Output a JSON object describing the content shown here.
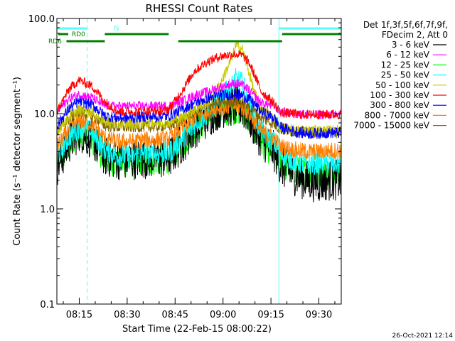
{
  "chart_data": {
    "type": "line",
    "title": "RHESSI Count Rates",
    "xlabel": "Start Time (22-Feb-15 08:00:22)",
    "ylabel": "Count Rate (s⁻¹ detector segment⁻¹)",
    "y_scale": "log",
    "ylim": [
      0.1,
      100.0
    ],
    "xlim_minutes": [
      8.0,
      97.0
    ],
    "y_ticks": [
      {
        "value": 0.1,
        "label": "0.1"
      },
      {
        "value": 1.0,
        "label": "1.0"
      },
      {
        "value": 10.0,
        "label": "10.0"
      },
      {
        "value": 100.0,
        "label": "100.0"
      }
    ],
    "x_ticks": [
      {
        "value": 15,
        "label": "08:15"
      },
      {
        "value": 30,
        "label": "08:30"
      },
      {
        "value": 45,
        "label": "08:45"
      },
      {
        "value": 60,
        "label": "09:00"
      },
      {
        "value": 75,
        "label": "09:15"
      },
      {
        "value": 90,
        "label": "09:30"
      }
    ],
    "legend_header": [
      "Det 1f,3f,5f,6f,7f,9f,",
      "FDecim 2, Att 0"
    ],
    "legend_position": "right",
    "grid": false,
    "attenuator_label": "N",
    "rd0_label": "RD0",
    "rd6_label": "RD6",
    "night_intervals": [
      [
        8.0,
        17.5
      ],
      [
        77.5,
        97.0
      ]
    ],
    "night_color": "#55ffff",
    "rd0_intervals": [
      [
        23.0,
        43.0
      ],
      [
        78.5,
        97.0
      ]
    ],
    "rd6_intervals": [
      [
        11.0,
        23.0
      ],
      [
        46.0,
        78.5
      ]
    ],
    "rd_color": "#008000",
    "x": [
      8,
      12,
      15,
      19,
      23,
      27,
      31,
      35,
      39,
      43,
      47,
      51,
      55,
      59,
      63,
      64,
      66,
      68,
      70,
      72,
      76,
      78,
      82,
      86,
      90,
      93,
      97
    ],
    "series": [
      {
        "name": "3 - 6 keV",
        "color": "#000000",
        "values": [
          2.8,
          5,
          6.5,
          5.5,
          3.6,
          3.3,
          3.3,
          3.4,
          3.4,
          3.4,
          4.8,
          7,
          9,
          11.5,
          12,
          12,
          11.5,
          9.5,
          7,
          5.5,
          4,
          2.8,
          2.3,
          2.0,
          1.9,
          2.0,
          2.0
        ]
      },
      {
        "name": "6 - 12 keV",
        "color": "#ff00ff",
        "values": [
          10.5,
          14.5,
          16,
          14.8,
          12,
          12,
          12,
          12,
          12,
          12,
          13.5,
          15.5,
          17,
          19,
          20.5,
          21,
          20,
          18,
          15,
          13,
          12,
          10.5,
          10,
          9.8,
          9.8,
          9.8,
          9.8
        ]
      },
      {
        "name": "12 - 25 keV",
        "color": "#00ff00",
        "values": [
          2.8,
          4.8,
          6.2,
          5.2,
          3.4,
          3.0,
          3.0,
          3.2,
          3.2,
          3.3,
          4.6,
          6.8,
          8.5,
          10.5,
          11,
          11,
          10.5,
          8.7,
          6.5,
          5.0,
          3.8,
          2.9,
          2.6,
          2.4,
          2.4,
          2.5,
          2.5
        ]
      },
      {
        "name": "25 - 50 keV",
        "color": "#00ffff",
        "values": [
          3.5,
          5.8,
          7.3,
          6.3,
          4.2,
          3.6,
          3.6,
          3.8,
          3.8,
          3.9,
          5.2,
          7.5,
          10,
          14,
          20,
          23,
          21,
          14,
          9,
          6.5,
          5,
          3.8,
          3.2,
          3.0,
          3.0,
          3.0,
          3.0
        ]
      },
      {
        "name": "50 - 100 keV",
        "color": "#c8c800",
        "values": [
          6.5,
          9.5,
          11,
          10.2,
          8.2,
          7.8,
          7.8,
          8.0,
          8.0,
          8.1,
          9,
          11,
          13,
          20,
          40,
          52,
          48,
          28,
          16,
          11,
          9,
          7.2,
          6.7,
          6.6,
          6.6,
          6.6,
          6.6
        ]
      },
      {
        "name": "100 - 300 keV",
        "color": "#ff0000",
        "values": [
          10.5,
          18.5,
          22.5,
          19.5,
          13.5,
          10.5,
          10.5,
          10.6,
          10.6,
          11,
          17,
          28,
          35,
          40,
          42,
          42,
          41,
          35,
          25,
          17,
          13,
          10.2,
          10,
          9.8,
          9.8,
          9.8,
          9.8
        ]
      },
      {
        "name": "300 - 800 keV",
        "color": "#0000ff",
        "values": [
          7.5,
          11.5,
          13.5,
          12.5,
          9.5,
          9.0,
          9.0,
          9.3,
          9.3,
          9.5,
          11,
          13,
          14.5,
          15.5,
          16,
          16,
          15.5,
          14.5,
          12.5,
          10.5,
          9,
          7.2,
          6.5,
          6.2,
          6.2,
          6.3,
          6.3
        ]
      },
      {
        "name": "800 - 7000 keV",
        "color": "#ff8000",
        "values": [
          4.5,
          7,
          8.5,
          7.8,
          5.5,
          5.1,
          5.1,
          5.3,
          5.3,
          5.4,
          7,
          9,
          10.5,
          11.5,
          12,
          12,
          11.5,
          10,
          8,
          6.5,
          5.5,
          4.5,
          4.2,
          4.0,
          4.0,
          4.1,
          4.1
        ]
      },
      {
        "name": "7000 - 15000 keV",
        "color": "#806600",
        "values": [
          6.5,
          9,
          10.5,
          9.7,
          7.5,
          7.2,
          7.2,
          7.3,
          7.3,
          7.4,
          8.6,
          10.5,
          12,
          13,
          13.5,
          13.5,
          13,
          12,
          10.5,
          9,
          7.8,
          6.8,
          6.5,
          6.4,
          6.4,
          6.4,
          6.4
        ]
      }
    ],
    "footer_timestamp": "26-Oct-2021 12:14"
  }
}
